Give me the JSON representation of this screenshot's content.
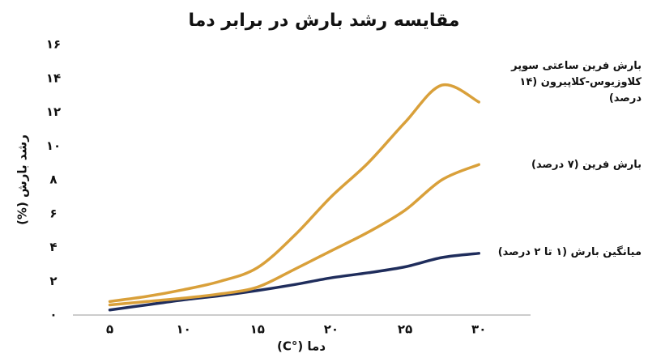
{
  "chart_data": {
    "type": "line",
    "title": "مقایسه رشد بارش در برابر دما",
    "x_label": "دما (°C)",
    "y_label": "رشد بارش (%)",
    "x": [
      5,
      7.5,
      10,
      12.5,
      15,
      17.5,
      20,
      22.5,
      25,
      27.5,
      30
    ],
    "series": [
      {
        "name": "میانگین بارش (۱ تا ۲ درصد)",
        "color": "#1f2d5c",
        "values": [
          0.3,
          0.6,
          0.9,
          1.15,
          1.45,
          1.8,
          2.2,
          2.5,
          2.85,
          3.4,
          3.65
        ]
      },
      {
        "name": "بارش فرین (۷ درصد)",
        "color": "#d9a03a",
        "values": [
          0.6,
          0.8,
          1.0,
          1.25,
          1.65,
          2.7,
          3.8,
          4.9,
          6.2,
          8.0,
          8.9
        ]
      },
      {
        "name": "بارش فرین ساعتی سوپر کلاوزیوس-کلاپیرون (۱۴ درصد)",
        "color": "#d9a03a",
        "values": [
          0.8,
          1.1,
          1.5,
          2.0,
          2.8,
          4.7,
          7.0,
          9.0,
          11.4,
          13.6,
          12.6
        ]
      }
    ],
    "xlim": [
      2.5,
      33.5
    ],
    "ylim": [
      0,
      16
    ],
    "xticks": [
      {
        "value": 5,
        "label": "۵"
      },
      {
        "value": 10,
        "label": "۱۰"
      },
      {
        "value": 15,
        "label": "۱۵"
      },
      {
        "value": 20,
        "label": "۲۰"
      },
      {
        "value": 25,
        "label": "۲۵"
      },
      {
        "value": 30,
        "label": "۳۰"
      }
    ],
    "yticks": [
      {
        "value": 0,
        "label": "۰"
      },
      {
        "value": 2,
        "label": "۲"
      },
      {
        "value": 4,
        "label": "۴"
      },
      {
        "value": 6,
        "label": "۶"
      },
      {
        "value": 8,
        "label": "۸"
      },
      {
        "value": 10,
        "label": "۱۰"
      },
      {
        "value": 12,
        "label": "۱۲"
      },
      {
        "value": 14,
        "label": "۱۴"
      },
      {
        "value": 16,
        "label": "۱۶"
      }
    ],
    "grid": false
  }
}
